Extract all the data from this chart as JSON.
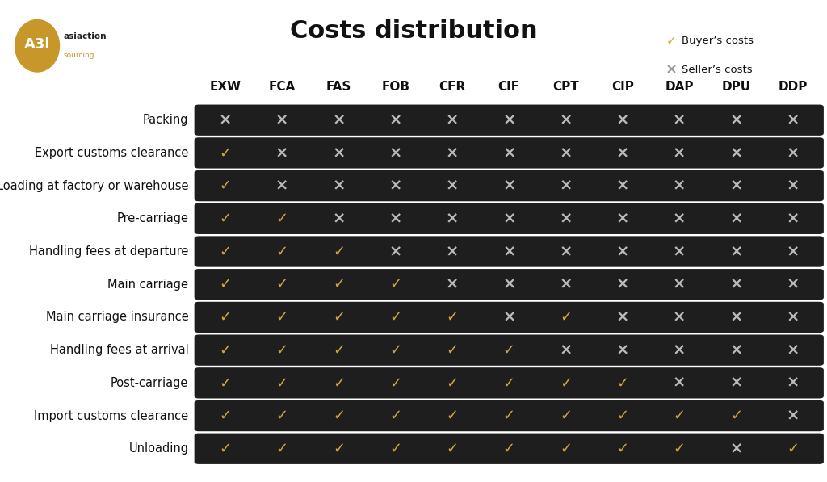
{
  "title": "Costs distribution",
  "columns": [
    "EXW",
    "FCA",
    "FAS",
    "FOB",
    "CFR",
    "CIF",
    "CPT",
    "CIP",
    "DAP",
    "DPU",
    "DDP"
  ],
  "rows": [
    "Packing",
    "Export customs clearance",
    "Loading at factory or warehouse",
    "Pre-carriage",
    "Handling fees at departure",
    "Main carriage",
    "Main carriage insurance",
    "Handling fees at arrival",
    "Post-carriage",
    "Import customs clearance",
    "Unloading"
  ],
  "data": [
    [
      0,
      0,
      0,
      0,
      0,
      0,
      0,
      0,
      0,
      0,
      0
    ],
    [
      1,
      0,
      0,
      0,
      0,
      0,
      0,
      0,
      0,
      0,
      0
    ],
    [
      1,
      0,
      0,
      0,
      0,
      0,
      0,
      0,
      0,
      0,
      0
    ],
    [
      1,
      1,
      0,
      0,
      0,
      0,
      0,
      0,
      0,
      0,
      0
    ],
    [
      1,
      1,
      1,
      0,
      0,
      0,
      0,
      0,
      0,
      0,
      0
    ],
    [
      1,
      1,
      1,
      1,
      0,
      0,
      0,
      0,
      0,
      0,
      0
    ],
    [
      1,
      1,
      1,
      1,
      1,
      0,
      1,
      0,
      0,
      0,
      0
    ],
    [
      1,
      1,
      1,
      1,
      1,
      1,
      0,
      0,
      0,
      0,
      0
    ],
    [
      1,
      1,
      1,
      1,
      1,
      1,
      1,
      1,
      0,
      0,
      0
    ],
    [
      1,
      1,
      1,
      1,
      1,
      1,
      1,
      1,
      1,
      1,
      0
    ],
    [
      1,
      1,
      1,
      1,
      1,
      1,
      1,
      1,
      1,
      0,
      1
    ]
  ],
  "check_color": "#D4A843",
  "cross_color": "#BBBBBB",
  "bar_color": "#1E1E1E",
  "bg_color": "#FFFFFF",
  "buyer_label": "Buyer’s costs",
  "seller_label": "Seller’s costs",
  "logo_ellipse_color": "#C8972A",
  "logo_text_color": "#222222",
  "logo_subtext_color": "#C8972A",
  "title_fontsize": 22,
  "header_fontsize": 11,
  "cell_fontsize": 13,
  "row_label_fontsize": 10.5,
  "legend_fontsize": 9.5
}
